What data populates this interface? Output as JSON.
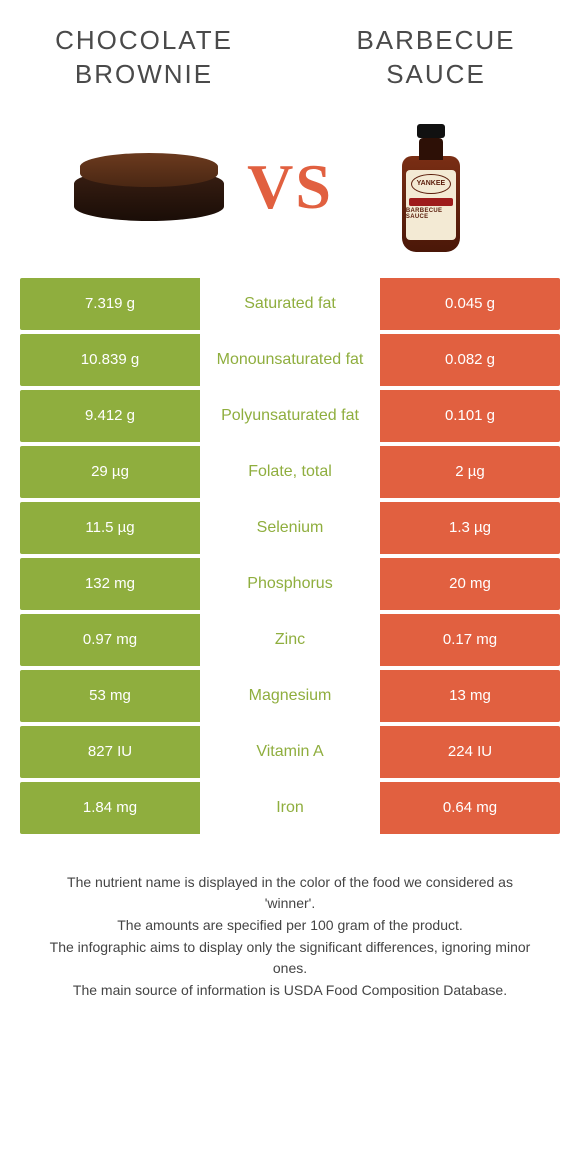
{
  "colors": {
    "left": "#8fae3e",
    "right": "#e16040",
    "label_text_winner_left": "#8fae3e",
    "label_text_winner_right": "#e16040"
  },
  "left_food": {
    "title": "CHOCOLATE BROWNIE"
  },
  "right_food": {
    "title": "BARBECUE SAUCE"
  },
  "vs": {
    "v": "V",
    "s": "S"
  },
  "rows": [
    {
      "left": "7.319 g",
      "label": "Saturated fat",
      "right": "0.045 g",
      "winner": "left"
    },
    {
      "left": "10.839 g",
      "label": "Monounsaturated fat",
      "right": "0.082 g",
      "winner": "left"
    },
    {
      "left": "9.412 g",
      "label": "Polyunsaturated fat",
      "right": "0.101 g",
      "winner": "left"
    },
    {
      "left": "29 µg",
      "label": "Folate, total",
      "right": "2 µg",
      "winner": "left"
    },
    {
      "left": "11.5 µg",
      "label": "Selenium",
      "right": "1.3 µg",
      "winner": "left"
    },
    {
      "left": "132 mg",
      "label": "Phosphorus",
      "right": "20 mg",
      "winner": "left"
    },
    {
      "left": "0.97 mg",
      "label": "Zinc",
      "right": "0.17 mg",
      "winner": "left"
    },
    {
      "left": "53 mg",
      "label": "Magnesium",
      "right": "13 mg",
      "winner": "left"
    },
    {
      "left": "827 IU",
      "label": "Vitamin A",
      "right": "224 IU",
      "winner": "left"
    },
    {
      "left": "1.84 mg",
      "label": "Iron",
      "right": "0.64 mg",
      "winner": "left"
    }
  ],
  "footer": {
    "l1": "The nutrient name is displayed in the color of the food we considered as 'winner'.",
    "l2": "The amounts are specified per 100 gram of the product.",
    "l3": "The infographic aims to display only the significant differences, ignoring minor ones.",
    "l4": "The main source of information is USDA Food Composition Database."
  },
  "bottle_label": {
    "brand": "YANKEE",
    "product": "BARBECUE SAUCE"
  }
}
